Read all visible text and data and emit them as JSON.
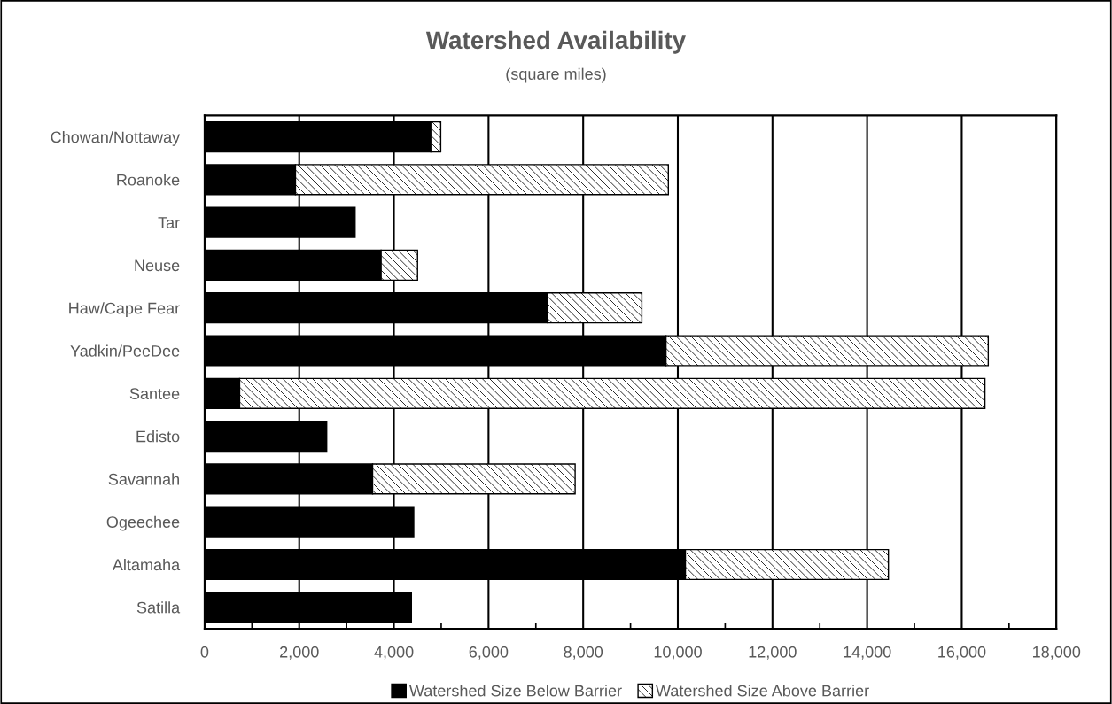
{
  "chart_data": {
    "type": "bar",
    "orientation": "horizontal",
    "stacked": true,
    "title": "Watershed Availability",
    "subtitle": "(square miles)",
    "categories": [
      "Chowan/Nottaway",
      "Roanoke",
      "Tar",
      "Neuse",
      "Haw/Cape Fear",
      "Yadkin/PeeDee",
      "Santee",
      "Edisto",
      "Savannah",
      "Ogeechee",
      "Altamaha",
      "Satilla"
    ],
    "series": [
      {
        "name": "Watershed Size Below Barrier",
        "color": "#000000",
        "values": [
          4780,
          1920,
          3180,
          3730,
          7250,
          9750,
          740,
          2580,
          3550,
          4420,
          10160,
          4370
        ]
      },
      {
        "name": "Watershed Size Above Barrier",
        "color": "#ffffff",
        "values": [
          210,
          7880,
          null,
          770,
          1990,
          6810,
          15750,
          null,
          4280,
          null,
          4290,
          null
        ]
      }
    ],
    "xlim": [
      0,
      18000
    ],
    "xticks": [
      {
        "value": 0,
        "label": "0"
      },
      {
        "value": 2000,
        "label": "2,000"
      },
      {
        "value": 4000,
        "label": "4,000"
      },
      {
        "value": 6000,
        "label": "6,000"
      },
      {
        "value": 8000,
        "label": "8,000"
      },
      {
        "value": 10000,
        "label": "10,000"
      },
      {
        "value": 12000,
        "label": "12,000"
      },
      {
        "value": 14000,
        "label": "14,000"
      },
      {
        "value": 16000,
        "label": "16,000"
      },
      {
        "value": 18000,
        "label": "18,000"
      }
    ],
    "grid": "x",
    "legend": "bottom"
  }
}
